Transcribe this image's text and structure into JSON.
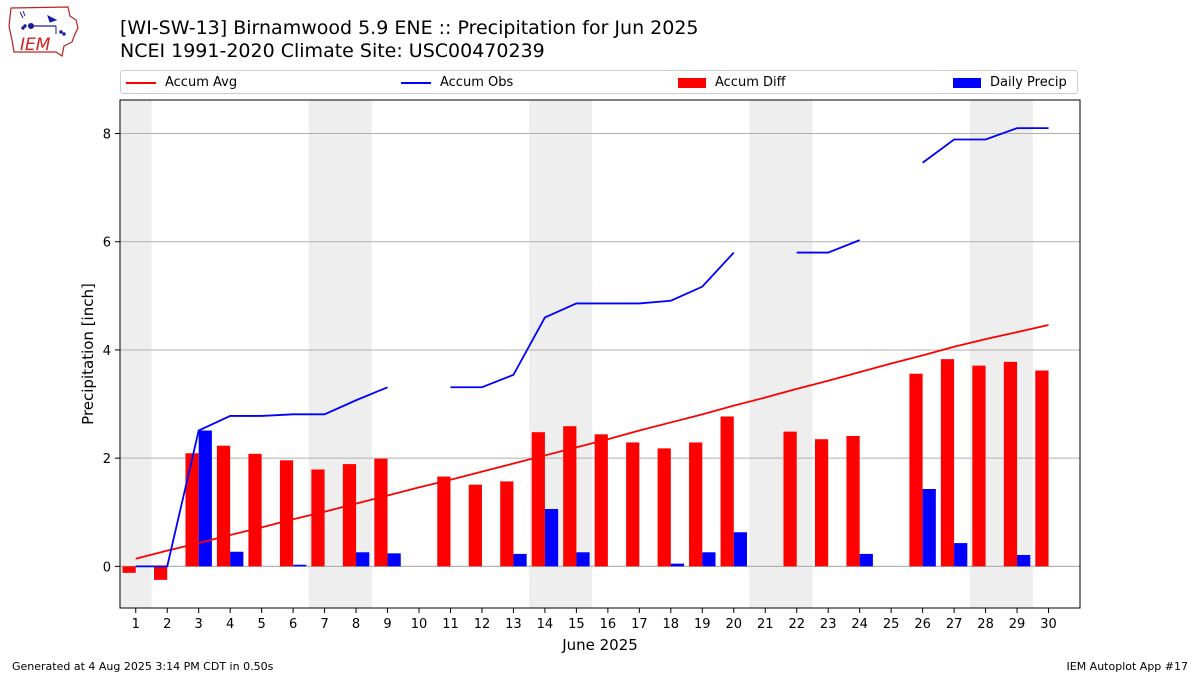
{
  "title_line1": "[WI-SW-13] Birnamwood 5.9 ENE :: Precipitation for Jun 2025",
  "title_line2": "NCEI 1991-2020 Climate Site: USC00470239",
  "logo": {
    "text": "IEM",
    "icon": "iowa-state-map-logo-icon"
  },
  "legend": [
    {
      "label": "Accum Avg",
      "color": "#ff0000",
      "kind": "line"
    },
    {
      "label": "Accum Obs",
      "color": "#0000ff",
      "kind": "line"
    },
    {
      "label": "Accum Diff",
      "color": "#ff0000",
      "kind": "box"
    },
    {
      "label": "Daily Precip",
      "color": "#0000ff",
      "kind": "box"
    }
  ],
  "footer_left": "Generated at 4 Aug 2025 3:14 PM CDT in 0.50s",
  "footer_right": "IEM Autoplot App #17",
  "chart_data": {
    "type": "bar",
    "xlabel": "June 2025",
    "ylabel": "Precipitation [inch]",
    "xlim": [
      0.5,
      31.0
    ],
    "ylim": [
      -0.77,
      8.62
    ],
    "yticks": [
      0,
      2,
      4,
      6,
      8
    ],
    "x": [
      1,
      2,
      3,
      4,
      5,
      6,
      7,
      8,
      9,
      10,
      11,
      12,
      13,
      14,
      15,
      16,
      17,
      18,
      19,
      20,
      21,
      22,
      23,
      24,
      25,
      26,
      27,
      28,
      29,
      30
    ],
    "weekend_shading": [
      [
        0.5,
        1.5
      ],
      [
        6.5,
        8.5
      ],
      [
        13.5,
        15.5
      ],
      [
        20.5,
        22.5
      ],
      [
        27.5,
        29.5
      ]
    ],
    "grid": "horizontal",
    "series": [
      {
        "name": "Accum Avg",
        "type": "line",
        "color": "#ff0000",
        "values": [
          0.14,
          0.29,
          0.43,
          0.58,
          0.72,
          0.87,
          1.01,
          1.16,
          1.31,
          1.46,
          1.6,
          1.75,
          1.9,
          2.05,
          2.2,
          2.35,
          2.51,
          2.66,
          2.81,
          2.97,
          3.12,
          3.28,
          3.43,
          3.59,
          3.75,
          3.9,
          4.06,
          4.2,
          4.33,
          4.46
        ]
      },
      {
        "name": "Accum Obs",
        "type": "line",
        "color": "#0000ff",
        "values": [
          0.0,
          0.0,
          2.51,
          2.78,
          2.78,
          2.81,
          2.81,
          3.07,
          3.31,
          null,
          3.31,
          3.31,
          3.54,
          4.6,
          4.86,
          4.86,
          4.86,
          4.91,
          5.17,
          5.8,
          null,
          5.8,
          5.8,
          6.03,
          null,
          7.46,
          7.89,
          7.89,
          8.1,
          8.1
        ]
      },
      {
        "name": "Accum Diff",
        "type": "bar",
        "color": "#ff0000",
        "values": [
          -0.12,
          -0.25,
          2.09,
          2.23,
          2.08,
          1.96,
          1.79,
          1.89,
          1.99,
          null,
          1.66,
          1.51,
          1.57,
          2.48,
          2.59,
          2.44,
          2.29,
          2.18,
          2.29,
          2.77,
          null,
          2.49,
          2.35,
          2.41,
          null,
          3.56,
          3.83,
          3.71,
          3.78,
          3.62
        ]
      },
      {
        "name": "Daily Precip",
        "type": "bar",
        "color": "#0000ff",
        "values": [
          0.0,
          0.0,
          2.51,
          0.27,
          0.0,
          0.03,
          0.0,
          0.26,
          0.24,
          0.0,
          0.0,
          0.0,
          0.23,
          1.06,
          0.26,
          0.0,
          0.0,
          0.05,
          0.26,
          0.63,
          0.0,
          0.0,
          0.0,
          0.23,
          0.0,
          1.43,
          0.43,
          0.0,
          0.21,
          0.0
        ]
      }
    ]
  }
}
